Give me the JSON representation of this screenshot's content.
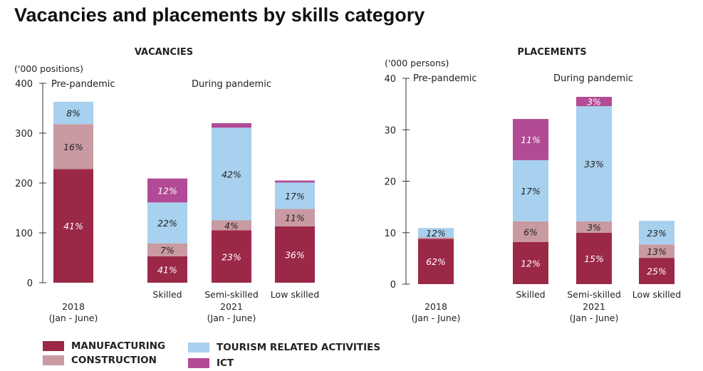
{
  "title": "Vacancies and placements by skills category",
  "colors": {
    "manufacturing": "#9b2847",
    "construction": "#c99aa2",
    "tourism": "#a8d0ef",
    "ict": "#b24a95",
    "axis": "#333333"
  },
  "legend": [
    {
      "key": "manufacturing",
      "label": "MANUFACTURING"
    },
    {
      "key": "construction",
      "label": "CONSTRUCTION"
    },
    {
      "key": "tourism",
      "label": "TOURISM RELATED ACTIVITIES"
    },
    {
      "key": "ict",
      "label": "ICT"
    }
  ],
  "chart_data": [
    {
      "type": "bar",
      "stacked": true,
      "title": "VACANCIES",
      "unit": "('000 positions)",
      "ylim": [
        0,
        400
      ],
      "yticks": [
        0,
        100,
        200,
        300,
        400
      ],
      "period_labels": [
        "Pre-pandemic",
        "During pandemic"
      ],
      "categories": [
        "2018 (Jan - June)",
        "Skilled",
        "Semi-skilled",
        "Low skilled"
      ],
      "category_labels": [
        "2018",
        "Skilled",
        "Semi-skilled",
        "Low skilled"
      ],
      "sublabels": {
        "2018": "(Jan - June)",
        "2021": "2021",
        "2021_months": "(Jan - June)"
      },
      "series": [
        {
          "name": "MANUFACTURING",
          "key": "manufacturing",
          "values": [
            228,
            53,
            105,
            113
          ],
          "labels": [
            "41%",
            "41%",
            "23%",
            "36%"
          ]
        },
        {
          "name": "CONSTRUCTION",
          "key": "construction",
          "values": [
            90,
            26,
            20,
            35
          ],
          "labels": [
            "16%",
            "7%",
            "4%",
            "11%"
          ]
        },
        {
          "name": "TOURISM RELATED ACTIVITIES",
          "key": "tourism",
          "values": [
            45,
            82,
            186,
            53
          ],
          "labels": [
            "8%",
            "22%",
            "42%",
            "17%"
          ]
        },
        {
          "name": "ICT",
          "key": "ict",
          "values": [
            0,
            48,
            9,
            4
          ],
          "labels": [
            "",
            "12%",
            "",
            ""
          ]
        }
      ]
    },
    {
      "type": "bar",
      "stacked": true,
      "title": "PLACEMENTS",
      "unit": "('000 persons)",
      "ylim": [
        0,
        40
      ],
      "yticks": [
        0,
        10,
        20,
        30,
        40
      ],
      "period_labels": [
        "Pre-pandemic",
        "During pandemic"
      ],
      "categories": [
        "2018 (Jan - June)",
        "Skilled",
        "Semi-skilled",
        "Low skilled"
      ],
      "category_labels": [
        "2018",
        "Skilled",
        "Semi-skilled",
        "Low skilled"
      ],
      "sublabels": {
        "2018": "(Jan - June)",
        "2021": "2021",
        "2021_months": "(Jan - June)"
      },
      "series": [
        {
          "name": "MANUFACTURING",
          "key": "manufacturing",
          "values": [
            8.8,
            8.2,
            10.0,
            5.1
          ],
          "labels": [
            "62%",
            "12%",
            "15%",
            "25%"
          ]
        },
        {
          "name": "CONSTRUCTION",
          "key": "construction",
          "values": [
            0.3,
            4.0,
            2.2,
            2.6
          ],
          "labels": [
            "",
            "6%",
            "3%",
            "13%"
          ]
        },
        {
          "name": "TOURISM RELATED ACTIVITIES",
          "key": "tourism",
          "values": [
            1.8,
            11.9,
            22.4,
            4.6
          ],
          "labels": [
            "12%",
            "17%",
            "33%",
            "23%"
          ]
        },
        {
          "name": "ICT",
          "key": "ict",
          "values": [
            0,
            8.0,
            1.8,
            0
          ],
          "labels": [
            "",
            "11%",
            "3%",
            ""
          ]
        }
      ]
    }
  ]
}
